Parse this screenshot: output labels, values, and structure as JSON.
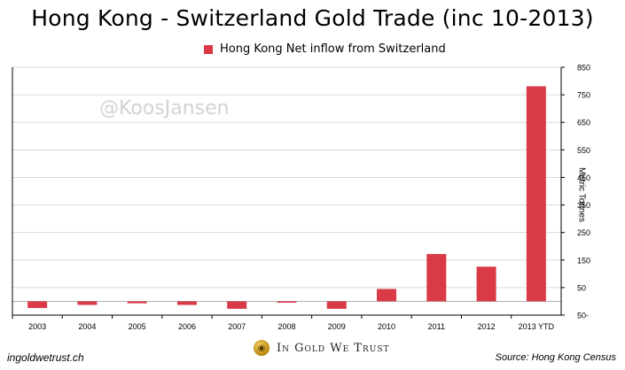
{
  "chart_data": {
    "type": "bar",
    "title": "Hong Kong - Switzerland Gold Trade (inc 10-2013)",
    "categories": [
      "2003",
      "2004",
      "2005",
      "2006",
      "2007",
      "2008",
      "2009",
      "2010",
      "2011",
      "2012",
      "2013 YTD"
    ],
    "series": [
      {
        "name": "Hong Kong Net inflow from Switzerland",
        "values": [
          -24,
          -13,
          -7,
          -13,
          -27,
          -1,
          -27,
          45,
          172,
          126,
          781
        ],
        "color": "#d93a46"
      }
    ],
    "ylabel": "Metric Tonnes",
    "ylim": [
      -50,
      850
    ],
    "yticks": [
      850,
      750,
      650,
      550,
      450,
      350,
      250,
      150,
      50,
      -50
    ],
    "ytick_labels": [
      "850",
      "750",
      "650",
      "550",
      "450",
      "350",
      "250",
      "150",
      "50",
      "50-"
    ],
    "y_axis_side": "right",
    "grid": "horizontal",
    "legend": "top"
  },
  "watermark": "@KoosJansen",
  "footer": {
    "left": "ingoldwetrust.ch",
    "brand": "In Gold We Trust",
    "source": "Source: Hong Kong Census"
  },
  "colors": {
    "bar": "#d93a46",
    "grid": "#d9d9d9",
    "axis": "#000000"
  }
}
